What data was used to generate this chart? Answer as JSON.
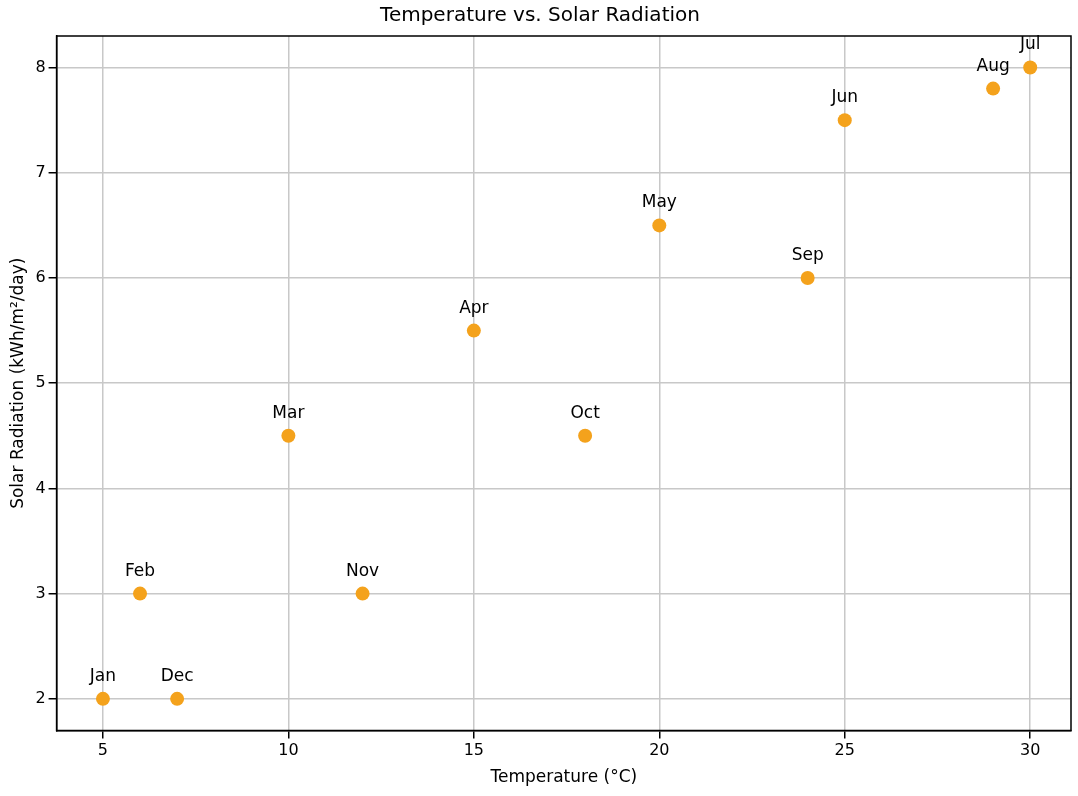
{
  "chart_data": {
    "type": "scatter",
    "title": "Temperature vs. Solar Radiation",
    "xlabel": "Temperature (°C)",
    "ylabel": "Solar Radiation (kWh/m²/day)",
    "x": [
      5,
      6,
      10,
      15,
      20,
      25,
      30,
      29,
      24,
      18,
      12,
      7
    ],
    "values": [
      2,
      3,
      4.5,
      5.5,
      6.5,
      7.5,
      8,
      7.8,
      6,
      4.5,
      3,
      2
    ],
    "color": "#f4a21c",
    "xlim": [
      3.75,
      31.1
    ],
    "xticks": [
      5,
      10,
      15,
      20,
      25,
      30
    ],
    "ylim": [
      1.7,
      8.3
    ],
    "yticks": [
      2,
      3,
      4,
      5,
      6,
      7,
      8
    ],
    "grid": true,
    "legend": false,
    "marker": "circle",
    "annotations": [
      {
        "text": "Jan",
        "x": 5,
        "y": 2
      },
      {
        "text": "Feb",
        "x": 6,
        "y": 3
      },
      {
        "text": "Mar",
        "x": 10,
        "y": 4.5
      },
      {
        "text": "Apr",
        "x": 15,
        "y": 5.5
      },
      {
        "text": "May",
        "x": 20,
        "y": 6.5
      },
      {
        "text": "Jun",
        "x": 25,
        "y": 7.5
      },
      {
        "text": "Jul",
        "x": 30,
        "y": 8
      },
      {
        "text": "Aug",
        "x": 29,
        "y": 7.8
      },
      {
        "text": "Sep",
        "x": 24,
        "y": 6
      },
      {
        "text": "Oct",
        "x": 18,
        "y": 4.5
      },
      {
        "text": "Nov",
        "x": 12,
        "y": 3
      },
      {
        "text": "Dec",
        "x": 7,
        "y": 2
      }
    ]
  }
}
